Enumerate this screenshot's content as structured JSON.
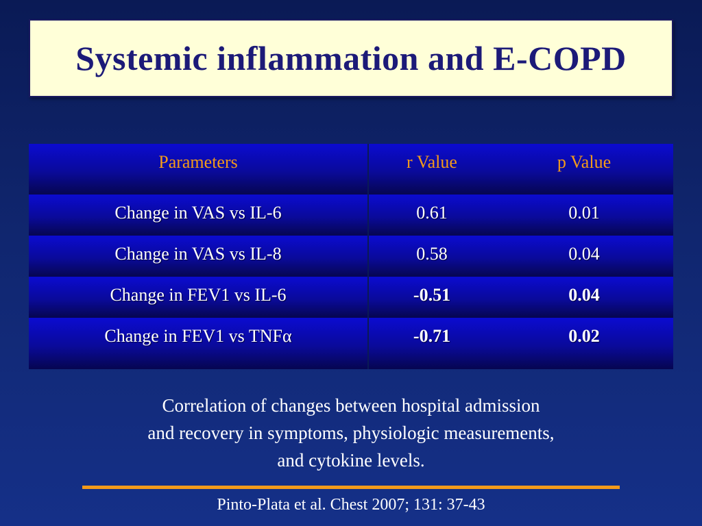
{
  "slide": {
    "title": "Systemic inflammation and E-COPD"
  },
  "table": {
    "headers": [
      "Parameters",
      "r Value",
      "p Value"
    ],
    "rows": [
      {
        "parameter": "Change in VAS vs IL-6",
        "r": "0.61",
        "p": "0.01"
      },
      {
        "parameter": "Change in VAS vs IL-8",
        "r": "0.58",
        "p": "0.04"
      },
      {
        "parameter": "Change in FEV1 vs IL-6",
        "r": "-0.51",
        "p": "0.04"
      },
      {
        "parameter": "Change in FEV1 vs TNFα",
        "r": "-0.71",
        "p": "0.02"
      }
    ]
  },
  "caption": {
    "line1": "Correlation of changes between hospital admission",
    "line2": "and recovery in symptoms, physiologic measurements,",
    "line3": "and cytokine levels."
  },
  "citation": "Pinto-Plata et al. Chest 2007; 131: 37-43",
  "colors": {
    "header_text": "#f39a1a",
    "title_text": "#1c1a78",
    "title_bg": "#ffffd8",
    "accent_rule": "#f39a1a"
  }
}
